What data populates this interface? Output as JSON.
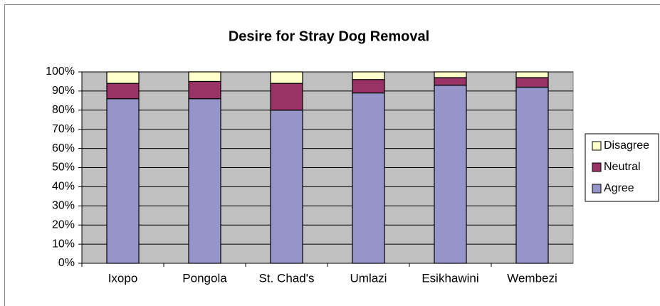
{
  "chart_data": {
    "type": "stacked_bar",
    "title": "Desire for Stray Dog Removal",
    "categories": [
      "Ixopo",
      "Pongola",
      "St. Chad's",
      "Umlazi",
      "Esikhawini",
      "Wembezi"
    ],
    "series": [
      {
        "name": "Agree",
        "color": "#9595c9",
        "values": [
          86,
          86,
          80,
          89,
          93,
          92
        ]
      },
      {
        "name": "Neutral",
        "color": "#993366",
        "values": [
          8,
          9,
          14,
          7,
          4,
          5
        ]
      },
      {
        "name": "Disagree",
        "color": "#ffffcc",
        "values": [
          6,
          5,
          6,
          4,
          3,
          3
        ]
      }
    ],
    "ylim": [
      0,
      100
    ],
    "yticks": [
      {
        "value": 0,
        "label": "0%"
      },
      {
        "value": 10,
        "label": "10%"
      },
      {
        "value": 20,
        "label": "20%"
      },
      {
        "value": 30,
        "label": "30%"
      },
      {
        "value": 40,
        "label": "40%"
      },
      {
        "value": 50,
        "label": "50%"
      },
      {
        "value": 60,
        "label": "60%"
      },
      {
        "value": 70,
        "label": "70%"
      },
      {
        "value": 80,
        "label": "80%"
      },
      {
        "value": 90,
        "label": "90%"
      },
      {
        "value": 100,
        "label": "100%"
      }
    ],
    "grid": true,
    "legend": "right"
  }
}
